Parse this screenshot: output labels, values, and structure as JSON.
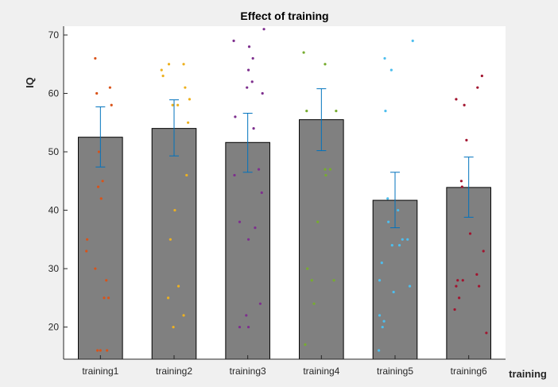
{
  "chart_data": {
    "type": "bar",
    "title": "Effect of training",
    "xlabel": "training",
    "ylabel": "IQ",
    "ylim": [
      14.5,
      71.5
    ],
    "yticks": [
      20,
      30,
      40,
      50,
      60,
      70
    ],
    "grid": false,
    "bar_color": "#808080",
    "error_color": "#0072bd",
    "categories": [
      "training1",
      "training2",
      "training3",
      "training4",
      "training5",
      "training6"
    ],
    "values": [
      52.5,
      54.0,
      51.6,
      55.5,
      41.7,
      43.9
    ],
    "error_low": [
      47.4,
      49.3,
      46.5,
      50.2,
      37.0,
      38.8
    ],
    "error_high": [
      57.7,
      58.9,
      56.6,
      60.8,
      46.5,
      49.1
    ],
    "scatter": [
      {
        "category": "training1",
        "color": "#d95319",
        "points": [
          [
            0.93,
            66
          ],
          [
            0.95,
            60
          ],
          [
            1.13,
            61
          ],
          [
            1.15,
            58
          ],
          [
            0.98,
            50
          ],
          [
            1.03,
            45
          ],
          [
            0.97,
            44
          ],
          [
            1.01,
            42
          ],
          [
            0.82,
            35
          ],
          [
            0.81,
            33
          ],
          [
            0.93,
            30
          ],
          [
            1.08,
            28
          ],
          [
            1.05,
            25
          ],
          [
            1.11,
            25
          ],
          [
            0.96,
            16
          ],
          [
            1.0,
            16
          ],
          [
            1.09,
            16
          ]
        ]
      },
      {
        "category": "training2",
        "color": "#edb120",
        "points": [
          [
            1.83,
            64
          ],
          [
            1.85,
            63
          ],
          [
            1.93,
            65
          ],
          [
            2.13,
            65
          ],
          [
            2.15,
            61
          ],
          [
            1.98,
            58
          ],
          [
            2.05,
            58
          ],
          [
            2.21,
            59
          ],
          [
            2.19,
            55
          ],
          [
            2.17,
            46
          ],
          [
            2.01,
            40
          ],
          [
            1.95,
            35
          ],
          [
            2.06,
            27
          ],
          [
            1.92,
            25
          ],
          [
            2.13,
            22
          ],
          [
            1.99,
            20
          ]
        ]
      },
      {
        "category": "training3",
        "color": "#7e2f8e",
        "points": [
          [
            2.81,
            69
          ],
          [
            3.22,
            71
          ],
          [
            3.02,
            68
          ],
          [
            3.07,
            66
          ],
          [
            3.01,
            64
          ],
          [
            3.06,
            62
          ],
          [
            3.2,
            60
          ],
          [
            2.99,
            61
          ],
          [
            2.83,
            56
          ],
          [
            3.08,
            54
          ],
          [
            2.82,
            46
          ],
          [
            3.15,
            47
          ],
          [
            3.19,
            43
          ],
          [
            2.89,
            38
          ],
          [
            3.1,
            37
          ],
          [
            3.01,
            35
          ],
          [
            3.17,
            24
          ],
          [
            2.98,
            22
          ],
          [
            2.89,
            20
          ],
          [
            3.01,
            20
          ]
        ]
      },
      {
        "category": "training4",
        "color": "#77ac30",
        "points": [
          [
            3.76,
            67
          ],
          [
            4.05,
            65
          ],
          [
            3.8,
            57
          ],
          [
            4.2,
            57
          ],
          [
            4.05,
            47
          ],
          [
            4.12,
            47
          ],
          [
            4.06,
            46
          ],
          [
            3.95,
            38
          ],
          [
            3.81,
            30
          ],
          [
            3.87,
            28
          ],
          [
            4.17,
            28
          ],
          [
            3.9,
            24
          ],
          [
            3.78,
            17
          ]
        ]
      },
      {
        "category": "training5",
        "color": "#4dbeee",
        "points": [
          [
            4.86,
            66
          ],
          [
            4.95,
            64
          ],
          [
            5.24,
            69
          ],
          [
            4.87,
            57
          ],
          [
            4.9,
            42
          ],
          [
            5.04,
            40
          ],
          [
            4.91,
            38
          ],
          [
            4.82,
            31
          ],
          [
            4.96,
            34
          ],
          [
            5.06,
            34
          ],
          [
            5.1,
            35
          ],
          [
            5.17,
            35
          ],
          [
            4.79,
            28
          ],
          [
            5.2,
            27
          ],
          [
            4.98,
            26
          ],
          [
            4.79,
            22
          ],
          [
            4.85,
            21
          ],
          [
            4.83,
            20
          ],
          [
            4.78,
            16
          ]
        ]
      },
      {
        "category": "training6",
        "color": "#a2142f",
        "points": [
          [
            5.83,
            59
          ],
          [
            5.94,
            58
          ],
          [
            6.12,
            61
          ],
          [
            6.18,
            63
          ],
          [
            5.97,
            52
          ],
          [
            5.9,
            45
          ],
          [
            5.91,
            44
          ],
          [
            6.02,
            36
          ],
          [
            6.2,
            33
          ],
          [
            6.11,
            29
          ],
          [
            5.85,
            28
          ],
          [
            5.83,
            27
          ],
          [
            5.92,
            28
          ],
          [
            6.14,
            27
          ],
          [
            5.87,
            25
          ],
          [
            5.81,
            23
          ],
          [
            6.24,
            19
          ]
        ]
      }
    ]
  }
}
